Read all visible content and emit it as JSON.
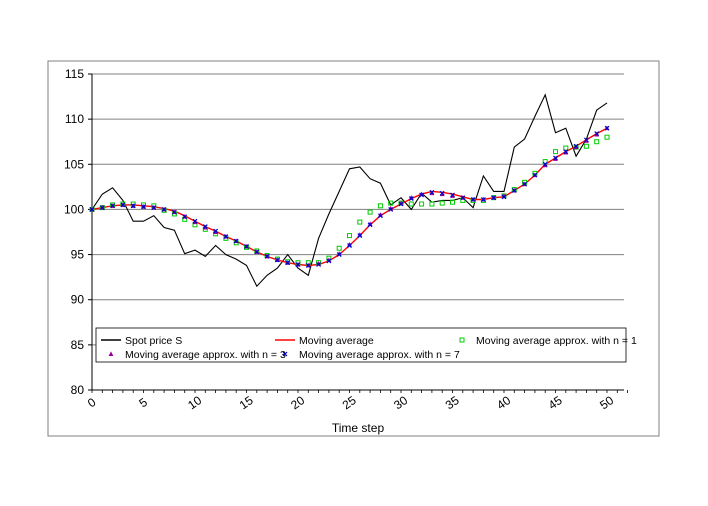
{
  "chart_data": {
    "type": "line",
    "title": "",
    "xlabel": "Time step",
    "ylabel": "",
    "xlim": [
      0,
      52
    ],
    "ylim": [
      80,
      115
    ],
    "x_ticks": [
      0,
      5,
      10,
      15,
      20,
      25,
      30,
      35,
      40,
      45,
      50
    ],
    "y_ticks": [
      80,
      85,
      90,
      95,
      100,
      105,
      110,
      115
    ],
    "grid": "horizontal",
    "legend_position": "inside-bottom",
    "colors": {
      "spot": "#000000",
      "ma": "#ff0000",
      "n1": "#00cc00",
      "n3": "#990099",
      "n7": "#0000cc",
      "gridline": "#808080",
      "frame": "#808080"
    },
    "series": [
      {
        "name": "Spot price S",
        "style": "line",
        "values": [
          100,
          101.7,
          102.4,
          101,
          98.7,
          98.7,
          99.3,
          98,
          97.7,
          95.1,
          95.5,
          94.8,
          96,
          95,
          94.5,
          93.8,
          91.5,
          92.7,
          93.5,
          95,
          93.5,
          92.7,
          96.8,
          99.5,
          102,
          104.5,
          104.7,
          103.4,
          102.9,
          100.5,
          101.3,
          100,
          101.8,
          100.8,
          101,
          101,
          101.3,
          100.2,
          103.7,
          102,
          102,
          106.9,
          107.8,
          110.3,
          112.7,
          108.5,
          109,
          105.9,
          107.8,
          111,
          111.8
        ]
      },
      {
        "name": "Moving average",
        "style": "line",
        "values": [
          100,
          100.2,
          100.4,
          100.5,
          100.5,
          100.4,
          100.3,
          100.1,
          99.8,
          99.3,
          98.7,
          98.1,
          97.6,
          97,
          96.5,
          95.9,
          95.3,
          94.8,
          94.4,
          94.1,
          93.9,
          93.8,
          93.9,
          94.3,
          95,
          96,
          97.1,
          98.3,
          99.3,
          100,
          100.6,
          101.2,
          101.7,
          102,
          101.9,
          101.7,
          101.4,
          101.1,
          101.1,
          101.3,
          101.4,
          102.1,
          102.8,
          103.8,
          105,
          105.7,
          106.4,
          107,
          107.7,
          108.4,
          109
        ]
      },
      {
        "name": "Moving average approx. with n = 1",
        "style": "marker",
        "marker": "square",
        "values": [
          100,
          100.2,
          100.5,
          100.6,
          100.6,
          100.5,
          100.4,
          99.9,
          99.5,
          98.9,
          98.3,
          97.8,
          97.3,
          96.8,
          96.3,
          95.8,
          95.4,
          94.9,
          94.5,
          94.2,
          94.1,
          94.1,
          94.1,
          94.6,
          95.7,
          97.1,
          98.6,
          99.7,
          100.4,
          100.7,
          100.7,
          100.6,
          100.6,
          100.6,
          100.7,
          100.8,
          101,
          101,
          101,
          101.3,
          101.5,
          102.2,
          103,
          104,
          105.3,
          106.4,
          106.8,
          106.9,
          107,
          107.5,
          108
        ]
      },
      {
        "name": "Moving average approx. with n = 3",
        "style": "marker",
        "marker": "triangle",
        "values": [
          100,
          100.2,
          100.4,
          100.5,
          100.4,
          100.3,
          100.2,
          100,
          99.7,
          99.2,
          98.6,
          98,
          97.5,
          97,
          96.5,
          95.9,
          95.3,
          94.8,
          94.4,
          94.1,
          93.9,
          93.8,
          94,
          94.4,
          95.1,
          96.1,
          97.2,
          98.4,
          99.4,
          100.1,
          100.7,
          101.3,
          101.7,
          101.8,
          101.7,
          101.5,
          101.3,
          101.1,
          101.1,
          101.3,
          101.5,
          102.1,
          102.8,
          103.8,
          104.9,
          105.6,
          106.3,
          106.9,
          107.6,
          108.3,
          109
        ]
      },
      {
        "name": "Moving average approx. with n = 7",
        "style": "marker",
        "marker": "x",
        "values": [
          100,
          100.2,
          100.4,
          100.5,
          100.4,
          100.3,
          100.2,
          100,
          99.7,
          99.2,
          98.7,
          98.1,
          97.6,
          97,
          96.5,
          95.9,
          95.3,
          94.8,
          94.4,
          94.1,
          93.9,
          93.8,
          93.9,
          94.3,
          95,
          96,
          97.1,
          98.3,
          99.3,
          100,
          100.6,
          101.2,
          101.6,
          101.9,
          101.8,
          101.6,
          101.3,
          101.1,
          101.1,
          101.3,
          101.4,
          102.1,
          102.8,
          103.8,
          105,
          105.7,
          106.4,
          107,
          107.7,
          108.4,
          109
        ]
      }
    ]
  }
}
